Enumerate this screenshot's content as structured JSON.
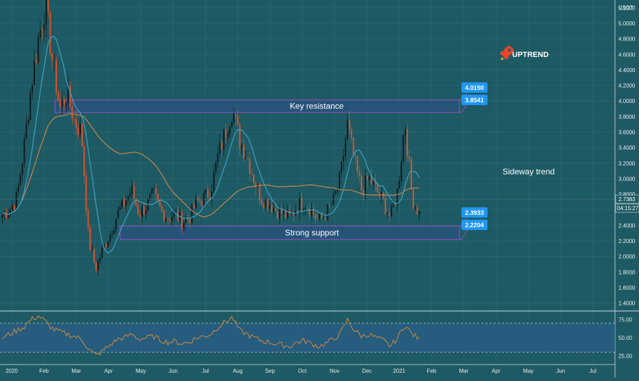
{
  "colors": {
    "background": "#1e5a63",
    "grid": "#2b6b74",
    "up_candle": "#0d1b1f",
    "down_candle": "#d9532c",
    "ma_short": "#3fa3c9",
    "ma_long": "#c9874a",
    "zone_fill": "#2e4f8a",
    "zone_stroke": "#9b4fc4",
    "label_bg": "#2196f3",
    "text": "#ffffff",
    "axis_text": "#e6eef0",
    "rsi_line": "#d98a3b",
    "rsi_band": "#2a5c8a",
    "rocket": "#e8452c"
  },
  "header": {
    "currency": "USDT"
  },
  "annotations": {
    "uptrend": "UPTREND",
    "sideway": "Sideway trend",
    "key_resistance": "Key resistance",
    "strong_support": "Strong support"
  },
  "price_labels": {
    "resistance_top": "4.0150",
    "resistance_bottom": "3.8541",
    "support_top": "2.3933",
    "support_bottom": "2.2204",
    "current_price": "2.7383",
    "countdown": "04:15:27"
  },
  "chart_data": {
    "type": "line",
    "x_ticks": [
      "2020",
      "Feb",
      "Mar",
      "Apr",
      "May",
      "Jun",
      "Jul",
      "Aug",
      "Sep",
      "Oct",
      "Nov",
      "Dec",
      "2021",
      "Feb",
      "Mar",
      "Apr",
      "May",
      "Jun",
      "Jul"
    ],
    "y_ticks": [
      "1.4000",
      "1.6000",
      "1.8000",
      "2.0000",
      "2.2000",
      "2.4000",
      "2.6000",
      "2.8000",
      "3.0000",
      "3.2000",
      "3.4000",
      "3.6000",
      "3.8000",
      "4.0000",
      "4.2000",
      "4.4000",
      "4.6000",
      "4.8000",
      "5.0000",
      "5.2000"
    ],
    "ylim": [
      1.3,
      5.3
    ],
    "zones": [
      {
        "label": "Key resistance",
        "low": 3.8541,
        "high": 4.015
      },
      {
        "label": "Strong support",
        "low": 2.2204,
        "high": 2.3933
      }
    ],
    "current_price": 2.7383,
    "price_series": [
      2.55,
      2.6,
      2.75,
      3.4,
      4.2,
      4.8,
      5.25,
      4.5,
      3.9,
      4.1,
      3.75,
      3.6,
      2.2,
      1.85,
      2.1,
      2.3,
      2.55,
      2.7,
      2.85,
      2.55,
      2.65,
      2.8,
      2.6,
      2.5,
      2.55,
      2.45,
      2.5,
      2.7,
      2.75,
      2.85,
      3.3,
      3.6,
      3.9,
      3.5,
      3.3,
      3.0,
      2.75,
      2.7,
      2.6,
      2.55,
      2.5,
      2.65,
      2.7,
      2.6,
      2.45,
      2.55,
      2.7,
      3.0,
      3.7,
      3.2,
      2.85,
      3.0,
      2.85,
      2.7,
      2.5,
      2.85,
      3.75,
      2.75,
      2.55
    ],
    "rsi": {
      "y_ticks": [
        "25.00",
        "50.00",
        "75.00"
      ],
      "ylim": [
        15,
        85
      ],
      "overbought": 70,
      "oversold": 30,
      "values": [
        50,
        55,
        60,
        65,
        75,
        80,
        72,
        62,
        58,
        55,
        52,
        48,
        35,
        25,
        32,
        40,
        48,
        50,
        55,
        48,
        50,
        52,
        47,
        44,
        45,
        42,
        44,
        50,
        52,
        55,
        65,
        72,
        78,
        60,
        55,
        50,
        46,
        44,
        42,
        40,
        38,
        44,
        46,
        42,
        38,
        42,
        48,
        55,
        75,
        60,
        52,
        55,
        50,
        46,
        38,
        50,
        68,
        55,
        48
      ]
    }
  }
}
